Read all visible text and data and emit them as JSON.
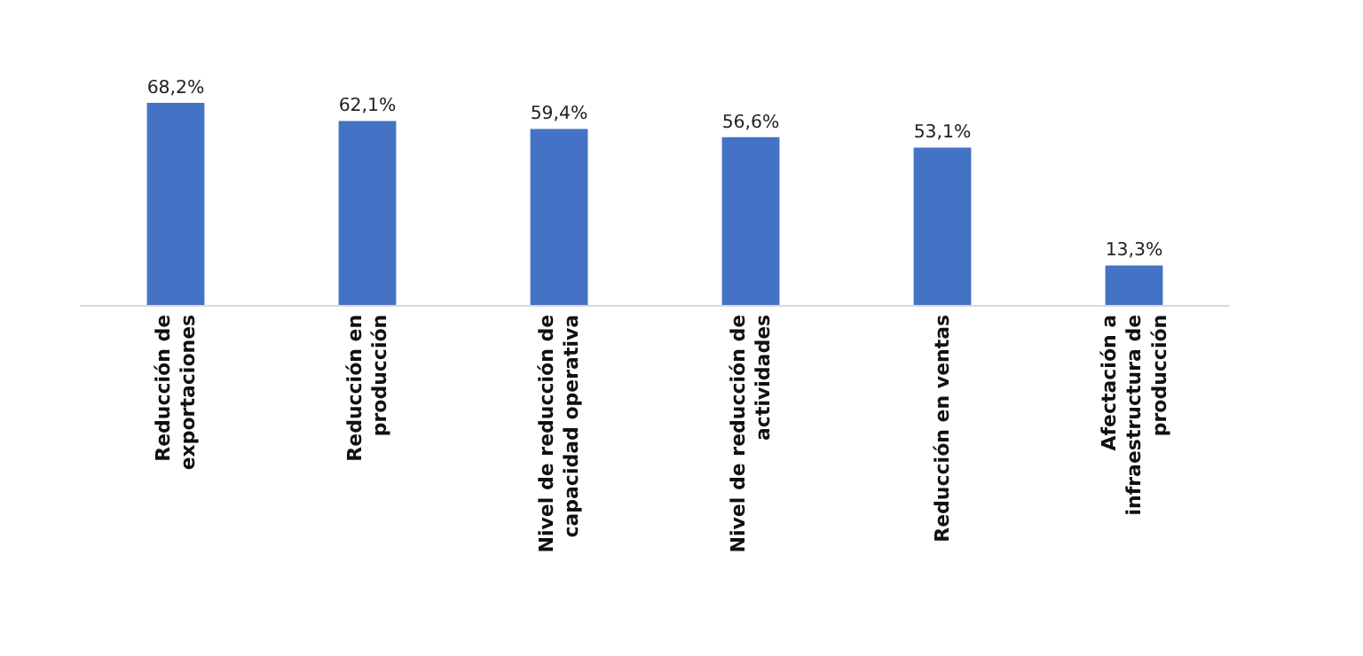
{
  "chart_data": {
    "type": "bar",
    "categories": [
      "Reducción de exportaciones",
      "Reducción en producción",
      "Nivel de reducción de capacidad operativa",
      "Nivel de reducción de actividades",
      "Reducción en ventas",
      "Afectación a infraestructura de producción"
    ],
    "values": [
      68.2,
      62.1,
      59.4,
      56.6,
      53.1,
      13.3
    ],
    "value_labels": [
      "68,2%",
      "62,1%",
      "59,4%",
      "56,6%",
      "53,1%",
      "13,3%"
    ],
    "color": "#4472c4",
    "grid": false,
    "legend": false,
    "tick_labels": "x"
  }
}
